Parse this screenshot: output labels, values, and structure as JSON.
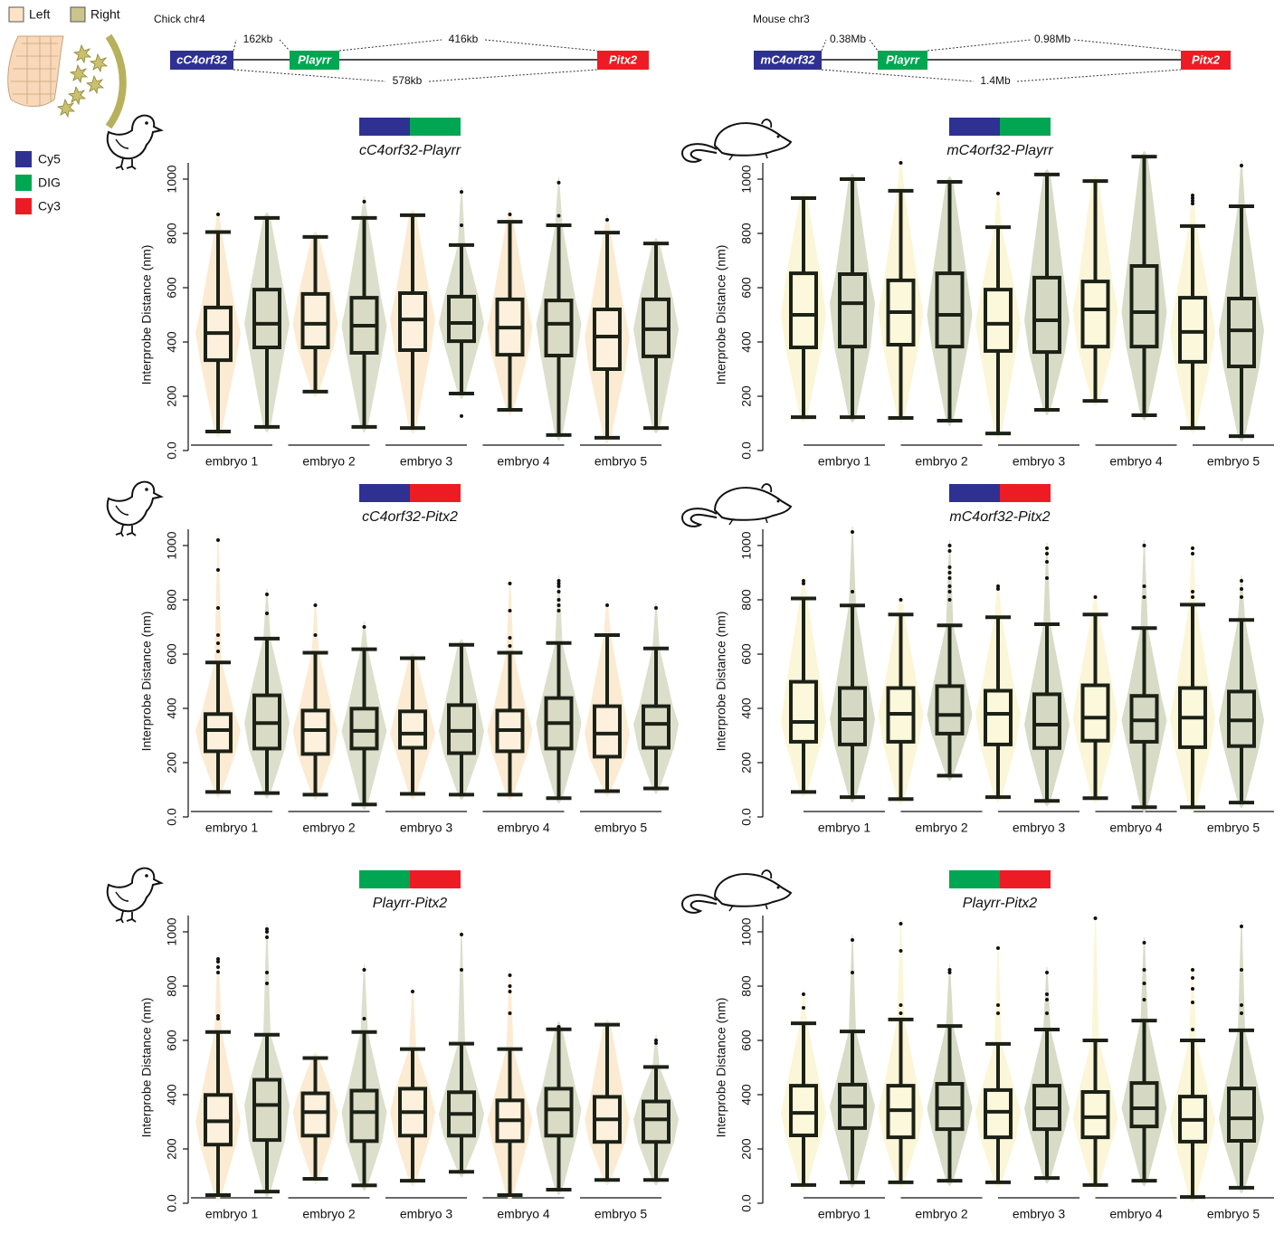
{
  "legend": {
    "conditions": [
      {
        "label": "Left",
        "color": "#fde3c8"
      },
      {
        "label": "Right",
        "color": "#c9c58c"
      }
    ],
    "probes": [
      {
        "label": "Cy5",
        "color": "#2e3192"
      },
      {
        "label": "DIG",
        "color": "#00a651"
      },
      {
        "label": "Cy3",
        "color": "#ed1c24"
      }
    ]
  },
  "maps": [
    {
      "title": "Chick chr4",
      "genes": [
        {
          "label": "cC4orf32",
          "color": "#2e3192"
        },
        {
          "label": "Playrr",
          "color": "#00a651"
        },
        {
          "label": "Pitx2",
          "color": "#ed1c24"
        }
      ],
      "distances": [
        "162kb",
        "416kb",
        "578kb"
      ]
    },
    {
      "title": "Mouse chr3",
      "genes": [
        {
          "label": "mC4orf32",
          "color": "#2e3192"
        },
        {
          "label": "Playrr",
          "color": "#00a651"
        },
        {
          "label": "Pitx2",
          "color": "#ed1c24"
        }
      ],
      "distances": [
        "0.38Mb",
        "0.98Mb",
        "1.4Mb"
      ]
    }
  ],
  "chart_data": [
    {
      "type": "box",
      "title": "cC4orf32-Playrr",
      "probe_colors": [
        "#2e3192",
        "#00a651"
      ],
      "ylabel": "Interprobe Distance (nm)",
      "categories": [
        "embryo 1",
        "embryo 2",
        "embryo 3",
        "embryo 4",
        "embryo 5"
      ],
      "ylim": [
        0,
        1060
      ],
      "yticks": [
        {
          "value": 0,
          "label": "0.0"
        },
        200,
        400,
        600,
        800,
        1000
      ],
      "series": [
        {
          "color": "#fdf0dc",
          "violin_color": "#fcebd3",
          "whislo": [
            70,
            217,
            83,
            150,
            47
          ],
          "q1": [
            333,
            380,
            370,
            353,
            300
          ],
          "median": [
            433,
            467,
            483,
            453,
            420
          ],
          "q3": [
            527,
            577,
            580,
            557,
            520
          ],
          "whishi": [
            805,
            787,
            867,
            843,
            803
          ],
          "outliers": [
            [
              870
            ],
            [],
            [],
            [
              870
            ],
            [
              850
            ]
          ]
        },
        {
          "color": "#d9dbc5",
          "violin_color": "#dcdfcb",
          "whislo": [
            87,
            87,
            210,
            57,
            83
          ],
          "q1": [
            380,
            360,
            403,
            350,
            347
          ],
          "median": [
            467,
            460,
            470,
            467,
            447
          ],
          "q3": [
            593,
            563,
            567,
            553,
            557
          ],
          "whishi": [
            857,
            857,
            757,
            830,
            763
          ],
          "outliers": [
            [],
            [
              917
            ],
            [
              953,
              830,
              127
            ],
            [
              987,
              865
            ],
            []
          ]
        }
      ]
    },
    {
      "type": "box",
      "title": "mC4orf32-Playrr",
      "probe_colors": [
        "#2e3192",
        "#00a651"
      ],
      "ylabel": "Interprobe Distance (nm)",
      "categories": [
        "embryo 1",
        "embryo 2",
        "embryo 3",
        "embryo 4",
        "embryo 5"
      ],
      "ylim": [
        0,
        1060
      ],
      "yticks": [
        {
          "value": 0,
          "label": "0.0"
        },
        200,
        400,
        600,
        800,
        1000
      ],
      "series": [
        {
          "color": "#fcf8dc",
          "violin_color": "#fbf6d8",
          "whislo": [
            123,
            120,
            63,
            183,
            83
          ],
          "q1": [
            380,
            390,
            367,
            383,
            327
          ],
          "median": [
            500,
            510,
            467,
            520,
            437
          ],
          "q3": [
            653,
            627,
            593,
            623,
            563
          ],
          "whishi": [
            930,
            957,
            823,
            993,
            827
          ],
          "outliers": [
            [],
            [
              1060
            ],
            [
              947
            ],
            [],
            [
              940,
              930,
              920,
              910
            ]
          ]
        },
        {
          "color": "#d5d8c2",
          "violin_color": "#d8dbc6",
          "whislo": [
            123,
            110,
            150,
            130,
            53
          ],
          "q1": [
            383,
            383,
            363,
            383,
            310
          ],
          "median": [
            543,
            500,
            480,
            510,
            443
          ],
          "q3": [
            650,
            653,
            637,
            680,
            560
          ],
          "whishi": [
            1000,
            990,
            1017,
            1083,
            900
          ],
          "outliers": [
            [],
            [],
            [],
            [],
            [
              1050
            ]
          ]
        }
      ]
    },
    {
      "type": "box",
      "title": "cC4orf32-Pitx2",
      "probe_colors": [
        "#2e3192",
        "#ed1c24"
      ],
      "ylabel": "Interprobe Distance (nm)",
      "categories": [
        "embryo 1",
        "embryo 2",
        "embryo 3",
        "embryo 4",
        "embryo 5"
      ],
      "ylim": [
        0,
        1060
      ],
      "yticks": [
        {
          "value": 0,
          "label": "0.0"
        },
        200,
        400,
        600,
        800,
        1000
      ],
      "series": [
        {
          "color": "#fdf0dc",
          "violin_color": "#fcebd3",
          "whislo": [
            92,
            82,
            85,
            82,
            95
          ],
          "q1": [
            242,
            232,
            255,
            242,
            222
          ],
          "median": [
            320,
            320,
            307,
            320,
            307
          ],
          "q3": [
            379,
            392,
            389,
            392,
            408
          ],
          "whishi": [
            569,
            605,
            585,
            605,
            670
          ],
          "outliers": [
            [
              1020,
              910,
              770,
              670,
              640,
              610
            ],
            [
              780,
              670
            ],
            [],
            [
              860,
              760,
              660,
              630
            ],
            [
              780
            ]
          ]
        },
        {
          "color": "#d9dbc5",
          "violin_color": "#dcdfcb",
          "whislo": [
            88,
            46,
            82,
            69,
            105
          ],
          "q1": [
            252,
            252,
            235,
            252,
            255
          ],
          "median": [
            346,
            317,
            317,
            346,
            343
          ],
          "q3": [
            448,
            399,
            412,
            438,
            408
          ],
          "whishi": [
            657,
            618,
            634,
            641,
            621
          ],
          "outliers": [
            [
              820,
              750
            ],
            [
              700
            ],
            [],
            [
              870,
              860,
              850,
              830,
              800,
              780,
              760
            ],
            [
              770
            ]
          ]
        }
      ]
    },
    {
      "type": "box",
      "title": "mC4orf32-Pitx2",
      "probe_colors": [
        "#2e3192",
        "#ed1c24"
      ],
      "ylabel": "Interprobe Distance (nm)",
      "categories": [
        "embryo 1",
        "embryo 2",
        "embryo 3",
        "embryo 4",
        "embryo 5"
      ],
      "ylim": [
        0,
        1060
      ],
      "yticks": [
        {
          "value": 0,
          "label": "0.0"
        },
        200,
        400,
        600,
        800,
        1000
      ],
      "series": [
        {
          "color": "#fcf8dc",
          "violin_color": "#fbf6d8",
          "whislo": [
            92,
            66,
            73,
            69,
            36
          ],
          "q1": [
            277,
            277,
            267,
            281,
            257
          ],
          "median": [
            350,
            380,
            380,
            366,
            366
          ],
          "q3": [
            498,
            475,
            465,
            485,
            475
          ],
          "whishi": [
            805,
            746,
            736,
            746,
            782
          ],
          "outliers": [
            [
              870,
              860
            ],
            [
              800
            ],
            [
              850,
              840
            ],
            [
              810
            ],
            [
              990,
              970,
              830,
              810
            ]
          ]
        },
        {
          "color": "#d5d8c2",
          "violin_color": "#d8dbc6",
          "whislo": [
            73,
            152,
            59,
            36,
            53
          ],
          "q1": [
            267,
            307,
            254,
            277,
            261
          ],
          "median": [
            360,
            376,
            340,
            356,
            356
          ],
          "q3": [
            475,
            482,
            452,
            446,
            462
          ],
          "whishi": [
            779,
            706,
            710,
            696,
            726
          ],
          "outliers": [
            [
              1050,
              830
            ],
            [
              1000,
              980,
              920,
              900,
              880,
              850,
              830,
              800
            ],
            [
              990,
              970,
              940,
              880
            ],
            [
              1000,
              850,
              810
            ],
            [
              870,
              840,
              810
            ]
          ]
        }
      ]
    },
    {
      "type": "box",
      "title": "Playrr-Pitx2",
      "probe_colors": [
        "#00a651",
        "#ed1c24"
      ],
      "ylabel": "Interprobe Distance (nm)",
      "categories": [
        "embryo 1",
        "embryo 2",
        "embryo 3",
        "embryo 4",
        "embryo 5"
      ],
      "ylim": [
        0,
        1060
      ],
      "yticks": [
        {
          "value": 0,
          "label": "0.0"
        },
        200,
        400,
        600,
        800,
        1000
      ],
      "series": [
        {
          "color": "#fdf0dc",
          "violin_color": "#fcebd3",
          "whislo": [
            30,
            90,
            83,
            30,
            86
          ],
          "q1": [
            216,
            249,
            249,
            229,
            226
          ],
          "median": [
            302,
            336,
            336,
            306,
            309
          ],
          "q3": [
            399,
            405,
            422,
            379,
            392
          ],
          "whishi": [
            631,
            535,
            568,
            568,
            658
          ],
          "outliers": [
            [
              900,
              890,
              870,
              850,
              690,
              680
            ],
            [],
            [
              780
            ],
            [
              840,
              800,
              780,
              700
            ],
            []
          ]
        },
        {
          "color": "#d9dbc5",
          "violin_color": "#dcdfcb",
          "whislo": [
            43,
            66,
            116,
            50,
            86
          ],
          "q1": [
            233,
            229,
            249,
            249,
            226
          ],
          "median": [
            362,
            336,
            329,
            346,
            309
          ],
          "q3": [
            455,
            415,
            409,
            422,
            375
          ],
          "whishi": [
            621,
            631,
            588,
            641,
            502
          ],
          "outliers": [
            [
              1010,
              1000,
              980,
              850,
              810
            ],
            [
              860,
              680
            ],
            [
              990,
              860
            ],
            [
              650
            ],
            [
              600,
              590
            ]
          ]
        }
      ]
    },
    {
      "type": "box",
      "title": "Playrr-Pitx2",
      "probe_colors": [
        "#00a651",
        "#ed1c24"
      ],
      "ylabel": "Interprobe Distance (nm)",
      "categories": [
        "embryo 1",
        "embryo 2",
        "embryo 3",
        "embryo 4",
        "embryo 5"
      ],
      "ylim": [
        0,
        1060
      ],
      "yticks": [
        {
          "value": 0,
          "label": "0.0"
        },
        200,
        400,
        600,
        800,
        1000
      ],
      "series": [
        {
          "color": "#fcf8dc",
          "violin_color": "#fbf6d8",
          "whislo": [
            67,
            77,
            77,
            67,
            23
          ],
          "q1": [
            250,
            243,
            243,
            243,
            227
          ],
          "median": [
            333,
            343,
            337,
            317,
            307
          ],
          "q3": [
            433,
            433,
            417,
            410,
            393
          ],
          "whishi": [
            663,
            677,
            587,
            600,
            600
          ],
          "outliers": [
            [
              770,
              720
            ],
            [
              1030,
              930,
              730,
              700
            ],
            [
              940,
              730,
              700
            ],
            [
              1050
            ],
            [
              860,
              830,
              790,
              740,
              640
            ]
          ]
        },
        {
          "color": "#d5d8c2",
          "violin_color": "#d8dbc6",
          "whislo": [
            77,
            83,
            93,
            83,
            57
          ],
          "q1": [
            277,
            273,
            273,
            283,
            230
          ],
          "median": [
            357,
            350,
            350,
            350,
            313
          ],
          "q3": [
            437,
            440,
            433,
            443,
            423
          ],
          "whishi": [
            633,
            653,
            640,
            673,
            637
          ],
          "outliers": [
            [
              970,
              850
            ],
            [
              860,
              850
            ],
            [
              850,
              770,
              750,
              700
            ],
            [
              960,
              860,
              810,
              750
            ],
            [
              1020,
              860,
              730,
              700
            ]
          ]
        }
      ]
    }
  ]
}
